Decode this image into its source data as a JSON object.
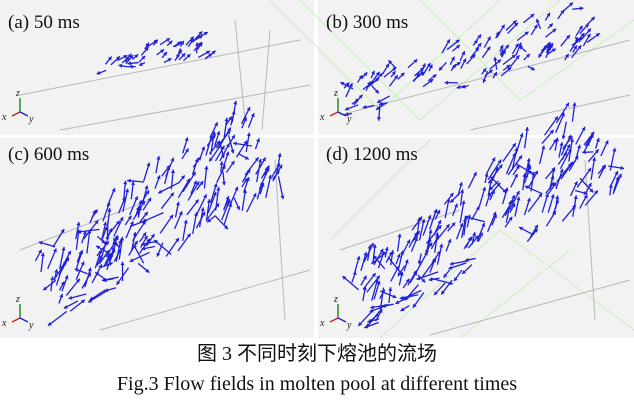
{
  "figure": {
    "panels": [
      {
        "label": "(a) 50 ms"
      },
      {
        "label": "(b) 300 ms"
      },
      {
        "label": "(c) 600 ms"
      },
      {
        "label": "(d) 1200 ms"
      }
    ],
    "axis_labels": {
      "x": "x",
      "y": "y",
      "z": "z"
    }
  },
  "caption": {
    "chinese": "图 3  不同时刻下熔池的流场",
    "english": "Fig.3  Flow fields in molten pool at different times"
  }
}
